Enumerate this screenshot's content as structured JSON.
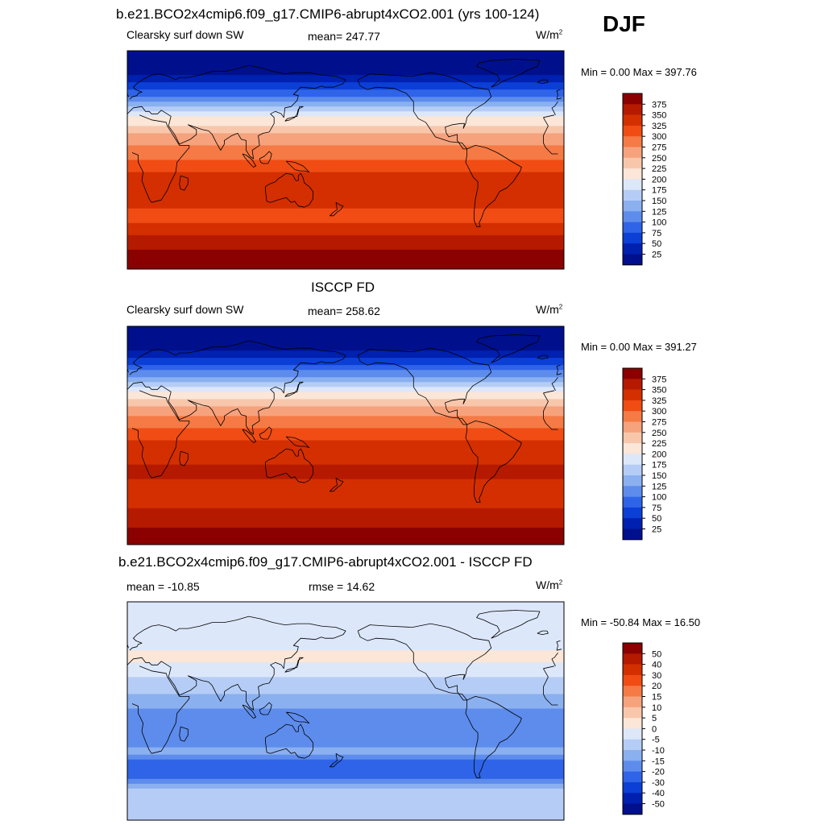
{
  "season": "DJF",
  "panels": [
    {
      "title": "b.e21.BCO2x4cmip6.f09_g17.CMIP6-abrupt4xCO2.001 (yrs 100-124)",
      "left_label": "Clearsky surf down SW",
      "mid_label": "mean= 247.77",
      "unit": "W/m",
      "unit_sup": "2",
      "minmax": "Min =   0.00 Max = 397.76",
      "colorbar": {
        "ticks": [
          "375",
          "350",
          "325",
          "300",
          "275",
          "250",
          "225",
          "200",
          "175",
          "150",
          "125",
          "100",
          "75",
          "50",
          "25"
        ],
        "colors": [
          "#8b0000",
          "#b51a00",
          "#d42f00",
          "#f04c14",
          "#f57a45",
          "#f6a27d",
          "#f8c7ab",
          "#fbe6d8",
          "#dce7fa",
          "#b5cdf6",
          "#8bb0f0",
          "#5d8cec",
          "#2f64e8",
          "#0b3fd6",
          "#0020b0",
          "#00108c"
        ]
      },
      "map_data": {
        "type": "heatmap",
        "field": "Clearsky surf down SW",
        "mean": 247.77,
        "min": 0.0,
        "max": 397.76,
        "zonal_lat": [
          90,
          75,
          60,
          45,
          35,
          20,
          5,
          -10,
          -25,
          -35,
          -45,
          -55,
          -65,
          -80,
          -90
        ],
        "zonal_values": [
          0,
          10,
          60,
          140,
          200,
          255,
          290,
          325,
          345,
          335,
          315,
          330,
          355,
          385,
          390
        ]
      }
    },
    {
      "title": "ISCCP FD",
      "left_label": "Clearsky surf down SW",
      "mid_label": "mean= 258.62",
      "unit": "W/m",
      "unit_sup": "2",
      "minmax": "Min =   0.00 Max = 391.27",
      "colorbar": {
        "ticks": [
          "375",
          "350",
          "325",
          "300",
          "275",
          "250",
          "225",
          "200",
          "175",
          "150",
          "125",
          "100",
          "75",
          "50",
          "25"
        ],
        "colors": [
          "#8b0000",
          "#b51a00",
          "#d42f00",
          "#f04c14",
          "#f57a45",
          "#f6a27d",
          "#f8c7ab",
          "#fbe6d8",
          "#dce7fa",
          "#b5cdf6",
          "#8bb0f0",
          "#5d8cec",
          "#2f64e8",
          "#0b3fd6",
          "#0020b0",
          "#00108c"
        ]
      },
      "map_data": {
        "type": "heatmap",
        "field": "Clearsky surf down SW",
        "mean": 258.62,
        "min": 0.0,
        "max": 391.27,
        "zonal_lat": [
          90,
          75,
          60,
          45,
          35,
          20,
          5,
          -10,
          -25,
          -35,
          -45,
          -55,
          -65,
          -80,
          -90
        ],
        "zonal_values": [
          0,
          10,
          65,
          145,
          205,
          265,
          305,
          335,
          350,
          350,
          345,
          345,
          355,
          380,
          385
        ]
      }
    },
    {
      "title": "b.e21.BCO2x4cmip6.f09_g17.CMIP6-abrupt4xCO2.001 - ISCCP FD",
      "left_label": "mean = -10.85",
      "mid_label": "rmse =  14.62",
      "unit": "W/m",
      "unit_sup": "2",
      "minmax": "Min = -50.84 Max =  16.50",
      "colorbar": {
        "ticks": [
          "50",
          "40",
          "30",
          "20",
          "15",
          "10",
          "5",
          "0",
          "-5",
          "-10",
          "-15",
          "-20",
          "-30",
          "-40",
          "-50"
        ],
        "colors": [
          "#8b0000",
          "#b51a00",
          "#d42f00",
          "#f04c14",
          "#f57a45",
          "#f6a27d",
          "#f8c7ab",
          "#fbe6d8",
          "#dce7fa",
          "#b5cdf6",
          "#8bb0f0",
          "#5d8cec",
          "#2f64e8",
          "#0b3fd6",
          "#0020b0",
          "#00108c"
        ]
      },
      "map_data": {
        "type": "heatmap",
        "field": "difference",
        "mean": -10.85,
        "rmse": 14.62,
        "min": -50.84,
        "max": 16.5,
        "zonal_lat": [
          90,
          75,
          60,
          45,
          35,
          20,
          5,
          -10,
          -25,
          -35,
          -45,
          -55,
          -65,
          -80,
          -90
        ],
        "zonal_values": [
          -2,
          -3,
          -4,
          2,
          -3,
          -8,
          -14,
          -18,
          -16,
          -14,
          -28,
          -22,
          -10,
          -6,
          -5
        ]
      }
    }
  ]
}
